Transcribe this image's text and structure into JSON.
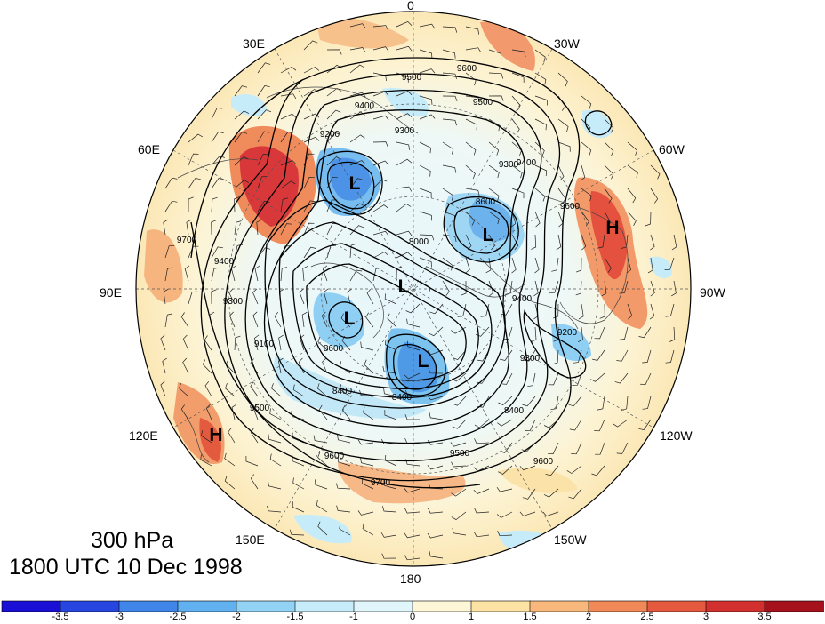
{
  "map": {
    "projection": "north polar stereographic",
    "longitude_labels": {
      "lon_0": "0",
      "lon_30w": "30W",
      "lon_60w": "60W",
      "lon_90w": "90W",
      "lon_120w": "120W",
      "lon_150w": "150W",
      "lon_180": "180",
      "lon_150e": "150E",
      "lon_120e": "120E",
      "lon_90e": "90E",
      "lon_60e": "60E",
      "lon_30e": "30E"
    },
    "centers": {
      "low_1": "L",
      "low_2": "L",
      "low_3": "L",
      "low_4": "L",
      "low_5": "L",
      "high_1": "H",
      "high_2": "H"
    },
    "contour_labels": {
      "c1": "9600",
      "c2": "9500",
      "c3": "9400",
      "c4": "9300",
      "c5": "9500",
      "c6": "9200",
      "c7": "9300",
      "c8": "9400",
      "c9": "8600",
      "c10": "9600",
      "c11": "9700",
      "c12": "9400",
      "c13": "9300",
      "c14": "9100",
      "c15": "8600",
      "c16": "8400",
      "c17": "8400",
      "c18": "9500",
      "c19": "9600",
      "c20": "9700",
      "c21": "9500",
      "c22": "9600",
      "c23": "8400",
      "c24": "9300",
      "c25": "9200",
      "c26": "9400",
      "c27": "8000"
    },
    "contour_color": "#000000",
    "grid_color": "#555555"
  },
  "title": {
    "level": "300 hPa",
    "time": "1800 UTC 10 Dec 1998"
  },
  "colorbar": {
    "colors": [
      "#1a0fd4",
      "#2746e0",
      "#3f86e8",
      "#61b0f0",
      "#92d3f5",
      "#c6ecf9",
      "#e0f6fb",
      "#fdf7d8",
      "#fce3a4",
      "#f8b87b",
      "#f08957",
      "#e55a3f",
      "#d2302f",
      "#a5121c"
    ],
    "labels": [
      "-3.5",
      "-3",
      "-2.5",
      "-2",
      "-1.5",
      "-1",
      "0",
      "1",
      "1.5",
      "2",
      "2.5",
      "3",
      "3.5"
    ]
  }
}
